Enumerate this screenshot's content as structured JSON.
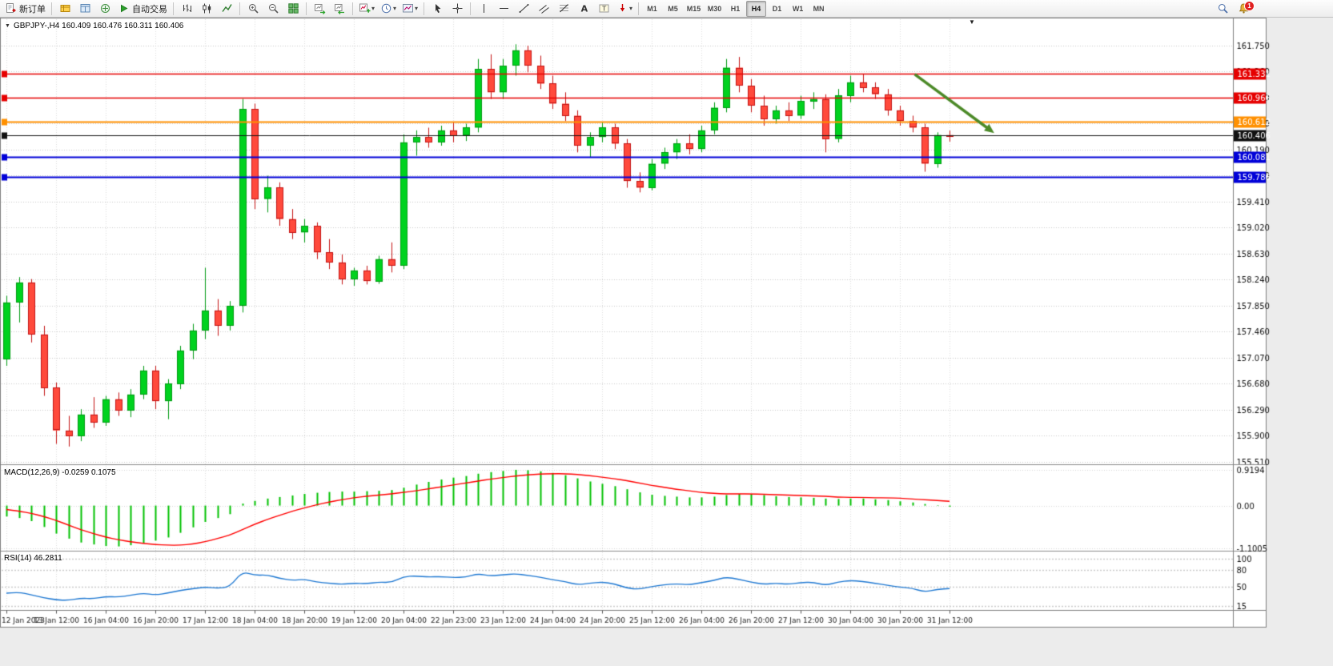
{
  "toolbar": {
    "new_order_label": "新订单",
    "autotrading_label": "自动交易",
    "timeframes": [
      "M1",
      "M5",
      "M15",
      "M30",
      "H1",
      "H4",
      "D1",
      "W1",
      "MN"
    ],
    "active_timeframe": "H4",
    "notification_count": "1"
  },
  "chart": {
    "header": "GBPJPY-,H4  160.409 160.476 160.311 160.406"
  },
  "indicators": {
    "macd_label": "MACD(12,26,9) -0.0259 0.1075",
    "rsi_label": "RSI(14) 46.2811"
  },
  "chart_data": {
    "type": "candlestick",
    "symbol": "GBPJPY-",
    "period": "H4",
    "ohlc_current": {
      "open": "160.409",
      "high": "160.476",
      "low": "160.311",
      "close": "160.406"
    },
    "price_ticks": [
      "161.750",
      "161.360",
      "160.970",
      "160.580",
      "160.190",
      "159.800",
      "159.410",
      "159.020",
      "158.630",
      "158.240",
      "157.850",
      "157.460",
      "157.070",
      "156.680",
      "156.290",
      "155.900",
      "155.510"
    ],
    "time_labels": [
      "12 Jan 2023",
      "13 Jan 12:00",
      "16 Jan 04:00",
      "16 Jan 20:00",
      "17 Jan 12:00",
      "18 Jan 04:00",
      "18 Jan 20:00",
      "19 Jan 12:00",
      "20 Jan 04:00",
      "22 Jan 23:00",
      "23 Jan 12:00",
      "24 Jan 04:00",
      "24 Jan 20:00",
      "25 Jan 12:00",
      "26 Jan 04:00",
      "26 Jan 20:00",
      "27 Jan 12:00",
      "30 Jan 04:00",
      "30 Jan 20:00",
      "31 Jan 12:00"
    ],
    "time_label_step": 4,
    "candles": [
      [
        157.05,
        158.0,
        156.95,
        157.9
      ],
      [
        157.9,
        158.28,
        157.6,
        158.2
      ],
      [
        158.2,
        158.25,
        157.3,
        157.42
      ],
      [
        157.42,
        157.55,
        156.5,
        156.62
      ],
      [
        156.62,
        156.7,
        155.78,
        155.98
      ],
      [
        155.98,
        156.2,
        155.74,
        155.9
      ],
      [
        155.9,
        156.3,
        155.82,
        156.22
      ],
      [
        156.22,
        156.48,
        156.02,
        156.1
      ],
      [
        156.1,
        156.5,
        156.05,
        156.45
      ],
      [
        156.45,
        156.55,
        156.2,
        156.28
      ],
      [
        156.28,
        156.6,
        156.18,
        156.52
      ],
      [
        156.52,
        156.95,
        156.45,
        156.88
      ],
      [
        156.88,
        156.95,
        156.3,
        156.42
      ],
      [
        156.42,
        156.75,
        156.15,
        156.68
      ],
      [
        156.68,
        157.25,
        156.6,
        157.18
      ],
      [
        157.18,
        157.58,
        157.05,
        157.48
      ],
      [
        157.48,
        158.42,
        157.35,
        157.78
      ],
      [
        157.78,
        157.95,
        157.4,
        157.55
      ],
      [
        157.55,
        157.92,
        157.48,
        157.85
      ],
      [
        157.85,
        160.95,
        157.75,
        160.8
      ],
      [
        160.8,
        160.88,
        159.3,
        159.45
      ],
      [
        159.45,
        159.8,
        159.25,
        159.62
      ],
      [
        159.62,
        159.7,
        159.05,
        159.15
      ],
      [
        159.15,
        159.3,
        158.85,
        158.95
      ],
      [
        158.95,
        159.15,
        158.8,
        159.05
      ],
      [
        159.05,
        159.1,
        158.55,
        158.65
      ],
      [
        158.65,
        158.85,
        158.4,
        158.5
      ],
      [
        158.5,
        158.62,
        158.17,
        158.25
      ],
      [
        158.25,
        158.42,
        158.15,
        158.38
      ],
      [
        158.38,
        158.45,
        158.17,
        158.22
      ],
      [
        158.22,
        158.6,
        158.18,
        158.55
      ],
      [
        158.55,
        158.8,
        158.35,
        158.45
      ],
      [
        158.45,
        160.42,
        158.4,
        160.3
      ],
      [
        160.3,
        160.48,
        160.1,
        160.38
      ],
      [
        160.38,
        160.52,
        160.22,
        160.3
      ],
      [
        160.3,
        160.55,
        160.25,
        160.48
      ],
      [
        160.48,
        160.6,
        160.3,
        160.4
      ],
      [
        160.4,
        160.58,
        160.32,
        160.52
      ],
      [
        160.52,
        161.55,
        160.45,
        161.4
      ],
      [
        161.4,
        161.62,
        160.95,
        161.05
      ],
      [
        161.05,
        161.55,
        160.95,
        161.45
      ],
      [
        161.45,
        161.77,
        161.3,
        161.68
      ],
      [
        161.68,
        161.75,
        161.35,
        161.45
      ],
      [
        161.45,
        161.6,
        161.1,
        161.18
      ],
      [
        161.18,
        161.3,
        160.8,
        160.88
      ],
      [
        160.88,
        161.05,
        160.62,
        160.7
      ],
      [
        160.7,
        160.78,
        160.15,
        160.25
      ],
      [
        160.25,
        160.45,
        160.08,
        160.38
      ],
      [
        160.38,
        160.6,
        160.3,
        160.52
      ],
      [
        160.52,
        160.58,
        160.2,
        160.28
      ],
      [
        160.28,
        160.35,
        159.62,
        159.72
      ],
      [
        159.72,
        159.85,
        159.55,
        159.62
      ],
      [
        159.62,
        160.05,
        159.58,
        159.98
      ],
      [
        159.98,
        160.22,
        159.9,
        160.15
      ],
      [
        160.15,
        160.35,
        160.05,
        160.28
      ],
      [
        160.28,
        160.42,
        160.12,
        160.2
      ],
      [
        160.2,
        160.55,
        160.15,
        160.48
      ],
      [
        160.48,
        160.9,
        160.42,
        160.82
      ],
      [
        160.82,
        161.55,
        160.75,
        161.42
      ],
      [
        161.42,
        161.58,
        161.05,
        161.15
      ],
      [
        161.15,
        161.25,
        160.75,
        160.85
      ],
      [
        160.85,
        161.0,
        160.55,
        160.65
      ],
      [
        160.65,
        160.85,
        160.58,
        160.78
      ],
      [
        160.78,
        160.9,
        160.62,
        160.7
      ],
      [
        160.7,
        161.0,
        160.65,
        160.92
      ],
      [
        160.92,
        161.05,
        160.8,
        160.95
      ],
      [
        160.95,
        161.02,
        160.15,
        160.35
      ],
      [
        160.35,
        161.1,
        160.3,
        161.0
      ],
      [
        161.0,
        161.3,
        160.9,
        161.2
      ],
      [
        161.2,
        161.32,
        161.05,
        161.12
      ],
      [
        161.12,
        161.2,
        160.95,
        161.02
      ],
      [
        161.02,
        161.1,
        160.7,
        160.78
      ],
      [
        160.78,
        160.85,
        160.55,
        160.62
      ],
      [
        160.62,
        160.7,
        160.45,
        160.52
      ],
      [
        160.52,
        160.58,
        159.86,
        159.98
      ],
      [
        159.98,
        160.45,
        159.92,
        160.41
      ],
      [
        160.409,
        160.476,
        160.311,
        160.406
      ]
    ],
    "hlines": [
      {
        "price": 161.331,
        "label": "161.331",
        "color": "#e60000",
        "width": 1.6
      },
      {
        "price": 160.966,
        "label": "160.966",
        "color": "#e60000",
        "width": 1.6
      },
      {
        "price": 160.612,
        "label": "160.612",
        "color": "#ff9000",
        "width": 2
      },
      {
        "price": 160.406,
        "label": "160.406",
        "color": "#111111",
        "width": 1
      },
      {
        "price": 160.081,
        "label": "160.081",
        "color": "#0000d8",
        "width": 2
      },
      {
        "price": 159.786,
        "label": "159.786",
        "color": "#0000d8",
        "width": 2
      }
    ],
    "arrow": {
      "from_index": 73.2,
      "from_price": 161.32,
      "to_index": 79.6,
      "to_price": 160.44,
      "color": "#4c8a28"
    },
    "macd": {
      "label": "MACD(12,26,9) -0.0259 0.1075",
      "axis_labels": [
        "0.9194",
        "0.00",
        "-1.1005"
      ],
      "hist_color": "#00c000",
      "signal_color": "#ff0000",
      "histogram": [
        -0.28,
        -0.32,
        -0.4,
        -0.55,
        -0.72,
        -0.85,
        -0.95,
        -1.0,
        -1.04,
        -1.05,
        -1.02,
        -0.97,
        -0.9,
        -0.82,
        -0.7,
        -0.56,
        -0.42,
        -0.32,
        -0.22,
        0.05,
        0.12,
        0.18,
        0.22,
        0.26,
        0.3,
        0.33,
        0.35,
        0.36,
        0.36,
        0.37,
        0.38,
        0.4,
        0.46,
        0.54,
        0.61,
        0.67,
        0.72,
        0.76,
        0.82,
        0.86,
        0.89,
        0.92,
        0.91,
        0.88,
        0.84,
        0.78,
        0.7,
        0.62,
        0.56,
        0.5,
        0.42,
        0.34,
        0.28,
        0.25,
        0.23,
        0.21,
        0.21,
        0.23,
        0.27,
        0.3,
        0.3,
        0.27,
        0.24,
        0.22,
        0.21,
        0.2,
        0.18,
        0.17,
        0.18,
        0.18,
        0.16,
        0.14,
        0.11,
        0.08,
        0.04,
        0.01,
        -0.03
      ],
      "signal": [
        -0.1,
        -0.14,
        -0.2,
        -0.28,
        -0.38,
        -0.5,
        -0.62,
        -0.72,
        -0.81,
        -0.88,
        -0.93,
        -0.97,
        -1.0,
        -1.02,
        -1.02,
        -0.99,
        -0.93,
        -0.85,
        -0.76,
        -0.62,
        -0.48,
        -0.36,
        -0.25,
        -0.15,
        -0.06,
        0.02,
        0.09,
        0.15,
        0.2,
        0.24,
        0.27,
        0.3,
        0.34,
        0.38,
        0.43,
        0.48,
        0.53,
        0.58,
        0.63,
        0.68,
        0.72,
        0.76,
        0.79,
        0.81,
        0.82,
        0.82,
        0.8,
        0.77,
        0.73,
        0.69,
        0.64,
        0.58,
        0.52,
        0.47,
        0.42,
        0.38,
        0.34,
        0.31,
        0.3,
        0.3,
        0.3,
        0.29,
        0.28,
        0.27,
        0.26,
        0.25,
        0.24,
        0.22,
        0.21,
        0.21,
        0.2,
        0.2,
        0.19,
        0.17,
        0.15,
        0.13,
        0.11
      ]
    },
    "rsi": {
      "label": "RSI(14) 46.2811",
      "level_labels": [
        "100",
        "80",
        "50",
        "15"
      ],
      "line_color": "#1e78d2",
      "values": [
        38,
        40,
        35,
        30,
        26,
        25,
        29,
        28,
        32,
        31,
        34,
        38,
        35,
        38,
        43,
        46,
        49,
        47,
        49,
        77,
        70,
        71,
        65,
        61,
        63,
        58,
        56,
        54,
        56,
        55,
        58,
        57,
        68,
        69,
        67,
        68,
        66,
        67,
        73,
        69,
        71,
        73,
        70,
        67,
        62,
        59,
        53,
        56,
        58,
        55,
        47,
        45,
        50,
        53,
        55,
        53,
        57,
        61,
        67,
        63,
        58,
        54,
        56,
        54,
        57,
        58,
        52,
        58,
        61,
        59,
        56,
        52,
        49,
        47,
        40,
        45,
        46.28
      ],
      "current": 46.2811
    },
    "colors": {
      "up_fill": "#00d21f",
      "up_border": "#009a12",
      "down_fill": "#ff4a3c",
      "down_border": "#c41414",
      "grid": "#c9c9c9",
      "axis_text": "#111111",
      "background": "#ffffff"
    }
  }
}
